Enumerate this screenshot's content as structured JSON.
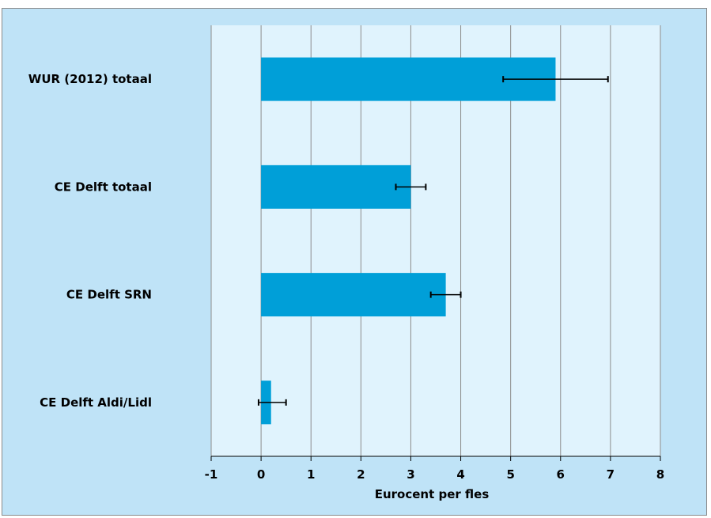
{
  "chart_data": {
    "type": "bar",
    "orientation": "horizontal",
    "title": "",
    "xlabel": "Eurocent per fles",
    "ylabel": "",
    "xlim": [
      -1,
      8
    ],
    "xticks": [
      "-1",
      "0",
      "1",
      "2",
      "3",
      "4",
      "5",
      "6",
      "7",
      "8"
    ],
    "grid": "vertical",
    "legend": "none",
    "categories": [
      "WUR (2012) totaal",
      "CE Delft totaal",
      "CE Delft SRN",
      "CE Delft Aldi/Lidl"
    ],
    "values": [
      5.9,
      3.0,
      3.7,
      0.2
    ],
    "error_low": [
      4.85,
      2.7,
      3.4,
      -0.05
    ],
    "error_high": [
      6.95,
      3.3,
      4.0,
      0.5
    ],
    "colors": {
      "bar": "#009fd8",
      "plot_background": "#e0f3fd",
      "chart_background": "#bfe3f7",
      "grid": "#8c8c8c",
      "error_bar": "#000000"
    }
  }
}
